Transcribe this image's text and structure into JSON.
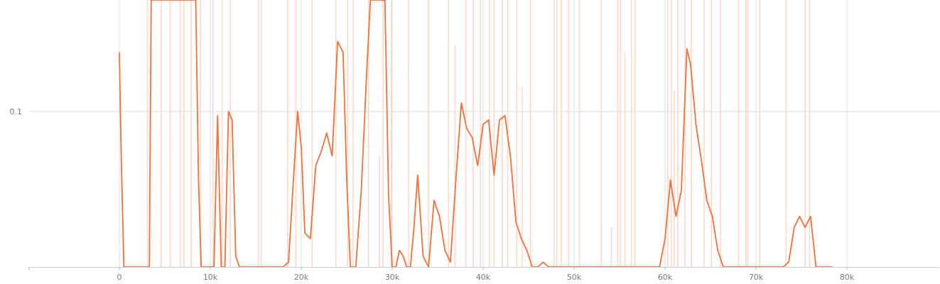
{
  "chart_data": {
    "type": "line",
    "title": "",
    "xlabel": "",
    "ylabel": "",
    "xlim": [
      -10000,
      90000
    ],
    "ylim": [
      0.04,
      0.3
    ],
    "y_scale": "log",
    "grid": true,
    "x_ticks": [
      {
        "value": 0,
        "label": "0"
      },
      {
        "value": 10000,
        "label": "10k"
      },
      {
        "value": 20000,
        "label": "20k"
      },
      {
        "value": 30000,
        "label": "30k"
      },
      {
        "value": 40000,
        "label": "40k"
      },
      {
        "value": 50000,
        "label": "50k"
      },
      {
        "value": 60000,
        "label": "60k"
      },
      {
        "value": 70000,
        "label": "70k"
      },
      {
        "value": 80000,
        "label": "80k"
      }
    ],
    "y_ticks": [
      {
        "value": 0.1,
        "label": "0.1"
      }
    ],
    "series": [
      {
        "role": "smoothed",
        "color": "#f4703a",
        "points": [
          [
            0,
            0.115
          ],
          [
            200,
            0.09
          ],
          [
            500,
            0.045
          ],
          [
            3300,
            0.045
          ],
          [
            3500,
            0.3
          ],
          [
            6800,
            0.28
          ],
          [
            7300,
            0.21
          ],
          [
            7600,
            0.28
          ],
          [
            8000,
            0.18
          ],
          [
            8400,
            0.16
          ],
          [
            8700,
            0.085
          ],
          [
            9000,
            0.065
          ],
          [
            9400,
            0.058
          ],
          [
            9700,
            0.047
          ],
          [
            10000,
            0.044
          ],
          [
            10400,
            0.052
          ],
          [
            10800,
            0.099
          ],
          [
            11200,
            0.045
          ],
          [
            11600,
            0.047
          ],
          [
            12000,
            0.1
          ],
          [
            12400,
            0.098
          ],
          [
            12800,
            0.071
          ],
          [
            13200,
            0.064
          ],
          [
            13600,
            0.059
          ],
          [
            14000,
            0.042
          ],
          [
            14400,
            0.04
          ],
          [
            15200,
            0.042
          ],
          [
            15600,
            0.047
          ],
          [
            16000,
            0.045
          ],
          [
            16400,
            0.041
          ],
          [
            16800,
            0.041
          ],
          [
            17200,
            0.048
          ],
          [
            17600,
            0.055
          ],
          [
            18000,
            0.057
          ],
          [
            18600,
            0.07
          ],
          [
            19200,
            0.087
          ],
          [
            19600,
            0.1
          ],
          [
            20000,
            0.092
          ],
          [
            20400,
            0.075
          ],
          [
            21000,
            0.074
          ],
          [
            21600,
            0.088
          ],
          [
            22200,
            0.091
          ],
          [
            22800,
            0.095
          ],
          [
            23400,
            0.09
          ],
          [
            24000,
            0.118
          ],
          [
            24600,
            0.115
          ],
          [
            25000,
            0.085
          ],
          [
            25400,
            0.06
          ],
          [
            26000,
            0.068
          ],
          [
            26600,
            0.083
          ],
          [
            27200,
            0.11
          ],
          [
            27600,
            0.178
          ],
          [
            28000,
            0.14
          ],
          [
            28400,
            0.15
          ],
          [
            28800,
            0.16
          ],
          [
            29200,
            0.13
          ],
          [
            29600,
            0.082
          ],
          [
            30000,
            0.061
          ],
          [
            30400,
            0.066
          ],
          [
            30800,
            0.072
          ],
          [
            31200,
            0.071
          ],
          [
            31600,
            0.057
          ],
          [
            32000,
            0.056
          ],
          [
            32400,
            0.076
          ],
          [
            32800,
            0.086
          ],
          [
            33400,
            0.071
          ],
          [
            34000,
            0.069
          ],
          [
            34600,
            0.081
          ],
          [
            35200,
            0.078
          ],
          [
            35800,
            0.072
          ],
          [
            36400,
            0.07
          ],
          [
            37000,
            0.085
          ],
          [
            37600,
            0.102
          ],
          [
            38200,
            0.096
          ],
          [
            38800,
            0.094
          ],
          [
            39400,
            0.088
          ],
          [
            40000,
            0.097
          ],
          [
            40600,
            0.098
          ],
          [
            41200,
            0.086
          ],
          [
            41800,
            0.098
          ],
          [
            42400,
            0.099
          ],
          [
            43000,
            0.09
          ],
          [
            43600,
            0.077
          ],
          [
            44200,
            0.074
          ],
          [
            44800,
            0.072
          ],
          [
            45400,
            0.069
          ],
          [
            46000,
            0.064
          ],
          [
            46600,
            0.07
          ],
          [
            47200,
            0.067
          ],
          [
            47800,
            0.069
          ],
          [
            48400,
            0.066
          ],
          [
            49000,
            0.062
          ],
          [
            49600,
            0.064
          ],
          [
            50200,
            0.062
          ],
          [
            50800,
            0.06
          ],
          [
            51400,
            0.061
          ],
          [
            52000,
            0.064
          ],
          [
            52400,
            0.061
          ],
          [
            53000,
            0.052
          ],
          [
            53600,
            0.048
          ],
          [
            54000,
            0.047
          ],
          [
            54600,
            0.048
          ],
          [
            55200,
            0.049
          ],
          [
            55800,
            0.047
          ],
          [
            56400,
            0.045
          ],
          [
            57000,
            0.046
          ],
          [
            57600,
            0.047
          ],
          [
            58200,
            0.05
          ],
          [
            58800,
            0.057
          ],
          [
            59400,
            0.063
          ],
          [
            60000,
            0.074
          ],
          [
            60600,
            0.085
          ],
          [
            61200,
            0.078
          ],
          [
            61800,
            0.083
          ],
          [
            62400,
            0.116
          ],
          [
            62800,
            0.112
          ],
          [
            63400,
            0.097
          ],
          [
            64000,
            0.089
          ],
          [
            64600,
            0.081
          ],
          [
            65200,
            0.078
          ],
          [
            65800,
            0.072
          ],
          [
            66400,
            0.068
          ],
          [
            67000,
            0.064
          ],
          [
            67600,
            0.062
          ],
          [
            68200,
            0.063
          ],
          [
            68800,
            0.061
          ],
          [
            69400,
            0.058
          ],
          [
            70000,
            0.055
          ],
          [
            70600,
            0.057
          ],
          [
            71200,
            0.058
          ],
          [
            71800,
            0.056
          ],
          [
            72400,
            0.058
          ],
          [
            73000,
            0.061
          ],
          [
            73600,
            0.07
          ],
          [
            74200,
            0.076
          ],
          [
            74800,
            0.078
          ],
          [
            75400,
            0.076
          ],
          [
            76000,
            0.078
          ],
          [
            76600,
            0.069
          ],
          [
            77200,
            0.06
          ],
          [
            77800,
            0.057
          ],
          [
            78400,
            0.056
          ]
        ]
      },
      {
        "role": "raw",
        "color": "#fbd3c2",
        "spikes": [
          [
            1900,
            0.051
          ],
          [
            3100,
            0.3
          ],
          [
            4600,
            0.3
          ],
          [
            5600,
            0.3
          ],
          [
            6700,
            0.3
          ],
          [
            7100,
            0.3
          ],
          [
            7900,
            0.3
          ],
          [
            8900,
            0.3
          ],
          [
            10300,
            0.3
          ],
          [
            11300,
            0.3
          ],
          [
            12200,
            0.29
          ],
          [
            13800,
            0.052
          ],
          [
            15300,
            0.3
          ],
          [
            15600,
            0.3
          ],
          [
            17900,
            0.042
          ],
          [
            18500,
            0.3
          ],
          [
            19400,
            0.3
          ],
          [
            21200,
            0.3
          ],
          [
            23800,
            0.3
          ],
          [
            25100,
            0.3
          ],
          [
            25700,
            0.3
          ],
          [
            27400,
            0.3
          ],
          [
            28600,
            0.09
          ],
          [
            29000,
            0.3
          ],
          [
            29900,
            0.3
          ],
          [
            31800,
            0.3
          ],
          [
            34000,
            0.3
          ],
          [
            36200,
            0.3
          ],
          [
            36900,
            0.117
          ],
          [
            37700,
            0.045
          ],
          [
            38100,
            0.3
          ],
          [
            38400,
            0.041
          ],
          [
            38900,
            0.3
          ],
          [
            39700,
            0.3
          ],
          [
            40700,
            0.3
          ],
          [
            41200,
            0.3
          ],
          [
            42100,
            0.3
          ],
          [
            42700,
            0.3
          ],
          [
            43700,
            0.3
          ],
          [
            44300,
            0.106
          ],
          [
            45200,
            0.3
          ],
          [
            46700,
            0.041
          ],
          [
            47800,
            0.3
          ],
          [
            48100,
            0.133
          ],
          [
            48600,
            0.3
          ],
          [
            49400,
            0.3
          ],
          [
            50600,
            0.3
          ],
          [
            53000,
            0.3
          ],
          [
            54100,
            0.076
          ],
          [
            54800,
            0.3
          ],
          [
            55100,
            0.3
          ],
          [
            55600,
            0.115
          ],
          [
            56300,
            0.3
          ],
          [
            56700,
            0.3
          ],
          [
            58100,
            0.051
          ],
          [
            60300,
            0.3
          ],
          [
            60700,
            0.3
          ],
          [
            61000,
            0.105
          ],
          [
            61400,
            0.194
          ],
          [
            62200,
            0.3
          ],
          [
            62900,
            0.3
          ],
          [
            64300,
            0.155
          ],
          [
            65100,
            0.3
          ],
          [
            66100,
            0.166
          ],
          [
            68100,
            0.241
          ],
          [
            68400,
            0.05
          ],
          [
            68900,
            0.3
          ],
          [
            69100,
            0.205
          ],
          [
            70400,
            0.3
          ],
          [
            73300,
            0.3
          ],
          [
            75400,
            0.3
          ],
          [
            75900,
            0.3
          ],
          [
            76300,
            0.044
          ]
        ]
      }
    ]
  }
}
